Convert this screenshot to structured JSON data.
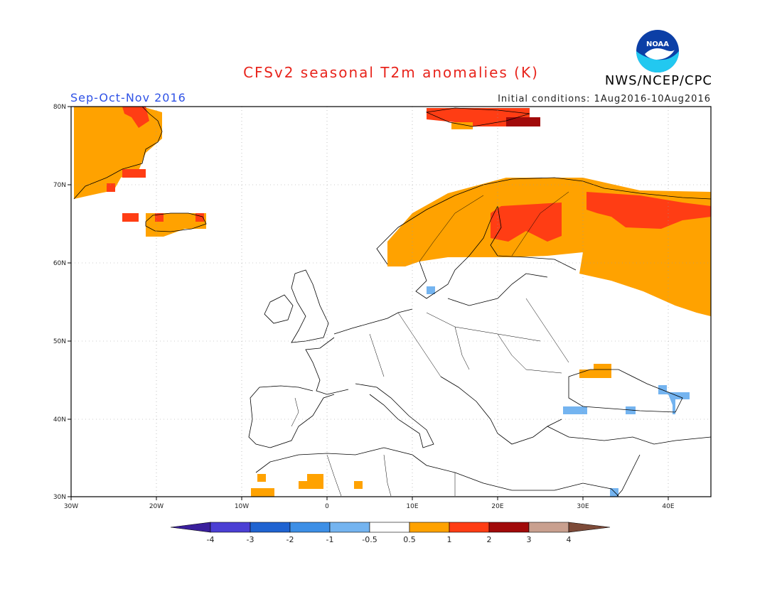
{
  "header": {
    "title": "CFSv2 seasonal T2m anomalies (K)",
    "season": "Sep-Oct-Nov 2016",
    "initial_conditions": "Initial conditions: 1Aug2016-10Aug2016",
    "organization": "NWS/NCEP/CPC",
    "logo_text": "NOAA"
  },
  "map": {
    "lon_range": [
      -30,
      45
    ],
    "lat_range": [
      30,
      80
    ],
    "lon_ticks": [
      "30W",
      "20W",
      "10W",
      "0",
      "10E",
      "20E",
      "30E",
      "40E"
    ],
    "lat_ticks": [
      "30N",
      "40N",
      "50N",
      "60N",
      "70N",
      "80N"
    ]
  },
  "colorbar": {
    "tick_labels": [
      "-4",
      "-3",
      "-2",
      "-1",
      "-0.5",
      "0.5",
      "1",
      "2",
      "3",
      "4"
    ],
    "colors": [
      "#3a1f9c",
      "#4b3fd4",
      "#1f63d1",
      "#3d8fe6",
      "#74b4f0",
      "#ffffff",
      "#ffa200",
      "#ff3d14",
      "#a10a0a",
      "#c9a08f",
      "#7d4a38"
    ]
  }
}
